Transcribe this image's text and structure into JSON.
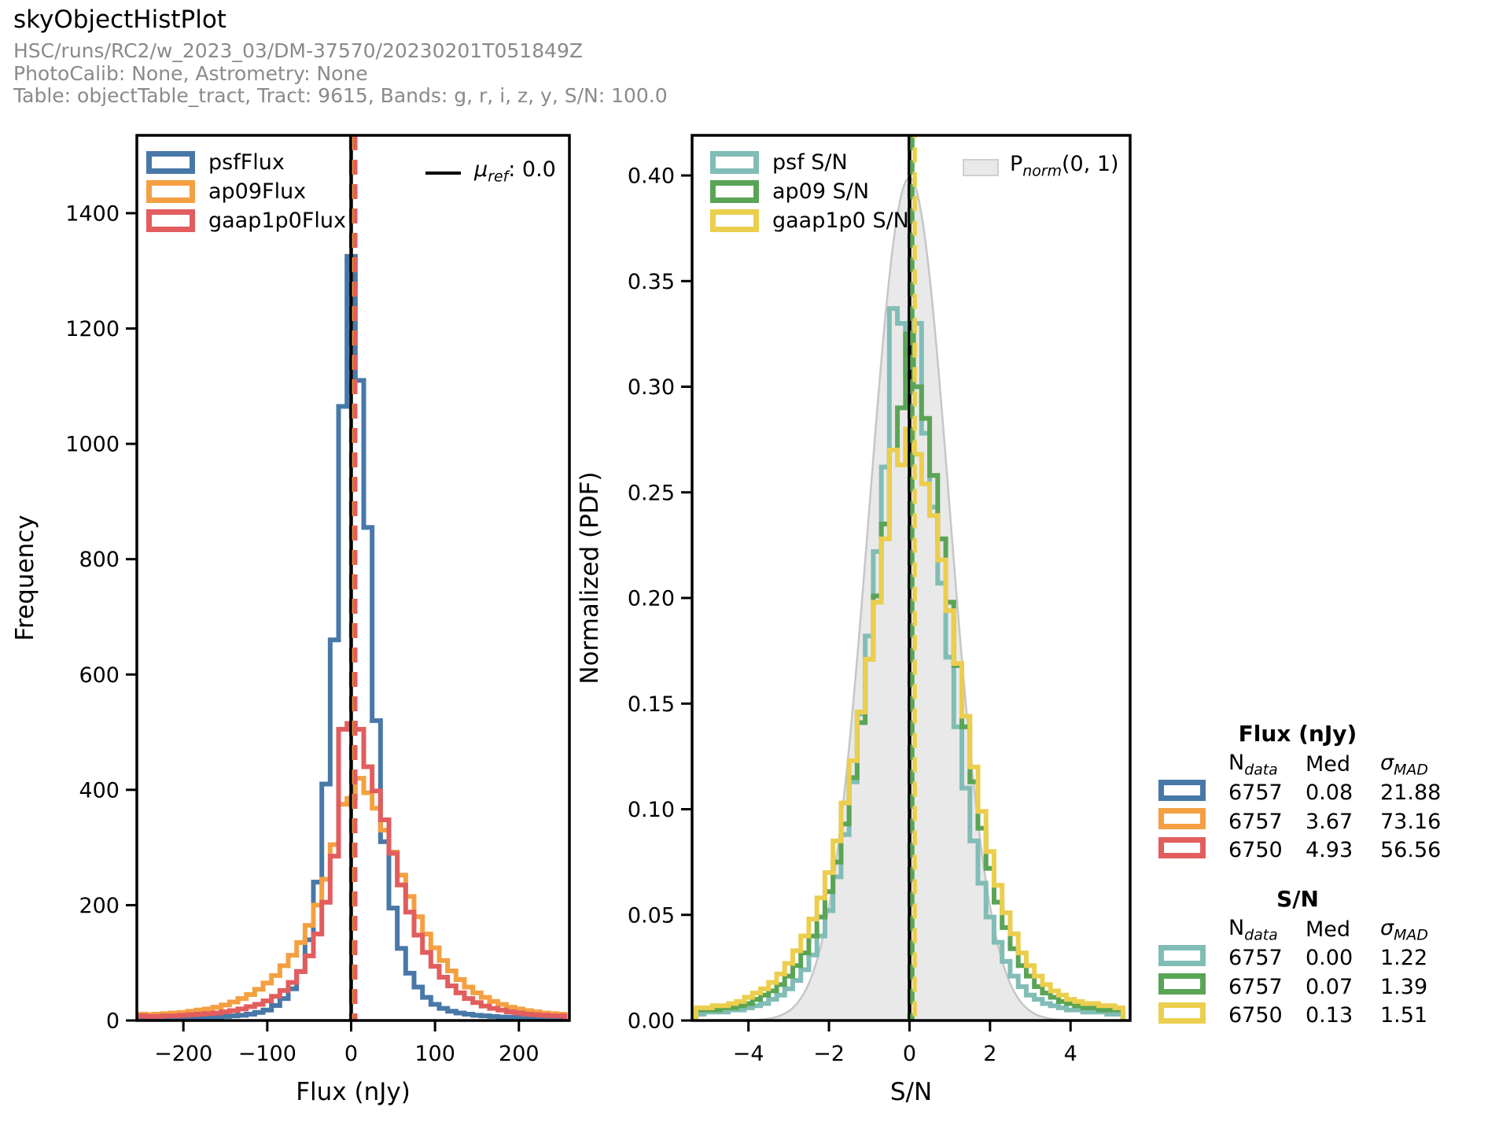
{
  "header": {
    "title": "skyObjectHistPlot",
    "run": "HSC/runs/RC2/w_2023_03/DM-37570/20230201T051849Z",
    "calib": "PhotoCalib: None, Astrometry: None",
    "table_info": "Table: objectTable_tract, Tract: 9615, Bands: g, r, i, z, y, S/N: 100.0"
  },
  "colors": {
    "subtitle_gray": "#8a8a8a",
    "axis_black": "#000000",
    "normal_fill": "#e9e9e9",
    "normal_edge": "#c6c6c6"
  },
  "chart_data": [
    {
      "type": "bar",
      "subtype": "step-histogram",
      "name": "flux-histogram",
      "title": "",
      "xlabel": "Flux (nJy)",
      "ylabel": "Frequency",
      "xlim": [
        -255.5,
        260.2
      ],
      "ylim": [
        0,
        1535
      ],
      "grid": false,
      "legend_position": "upper left",
      "xticks": [
        -200,
        -100,
        0,
        100,
        200
      ],
      "xtick_labels": [
        "−200",
        "−100",
        "0",
        "100",
        "200"
      ],
      "yticks": [
        0,
        200,
        400,
        600,
        800,
        1000,
        1200,
        1400
      ],
      "ytick_labels": [
        "0",
        "200",
        "400",
        "600",
        "800",
        "1000",
        "1200",
        "1400"
      ],
      "bin_width": 10,
      "bin_centers_start": -250,
      "ref_line": {
        "x": 0.0,
        "symbol": "μ",
        "sub": "ref",
        "text": ": 0.0",
        "color": "#000000"
      },
      "series": [
        {
          "name": "psfFlux",
          "color": "#4878a8",
          "n_data": 6757,
          "median": 0.08,
          "sigma_mad": 21.88,
          "values": [
            3,
            3,
            3,
            4,
            4,
            4,
            5,
            5,
            6,
            6,
            7,
            8,
            9,
            11,
            14,
            18,
            26,
            38,
            55,
            85,
            140,
            240,
            410,
            660,
            1065,
            1325,
            1110,
            855,
            520,
            310,
            195,
            125,
            82,
            58,
            40,
            28,
            21,
            16,
            13,
            11,
            9,
            8,
            7,
            6,
            6,
            5,
            5,
            4,
            4,
            4,
            3
          ]
        },
        {
          "name": "ap09Flux",
          "color": "#f4a042",
          "n_data": 6757,
          "median": 3.67,
          "sigma_mad": 73.16,
          "values": [
            11,
            10,
            11,
            12,
            13,
            14,
            16,
            18,
            20,
            23,
            27,
            32,
            38,
            45,
            54,
            65,
            78,
            95,
            113,
            135,
            165,
            200,
            245,
            305,
            375,
            385,
            420,
            395,
            368,
            330,
            292,
            252,
            215,
            180,
            150,
            126,
            104,
            86,
            71,
            58,
            48,
            40,
            33,
            28,
            23,
            20,
            17,
            15,
            13,
            12,
            11
          ]
        },
        {
          "name": "gaap1p0Flux",
          "color": "#e25d5e",
          "n_data": 6750,
          "median": 4.93,
          "sigma_mad": 56.56,
          "values": [
            8,
            7,
            7,
            8,
            8,
            9,
            10,
            11,
            12,
            13,
            15,
            17,
            20,
            24,
            28,
            34,
            42,
            52,
            66,
            85,
            112,
            150,
            205,
            285,
            505,
            515,
            505,
            440,
            398,
            348,
            290,
            235,
            188,
            148,
            118,
            94,
            75,
            60,
            48,
            38,
            31,
            25,
            21,
            18,
            15,
            13,
            11,
            10,
            9,
            8,
            8
          ]
        }
      ]
    },
    {
      "type": "bar",
      "subtype": "step-histogram",
      "name": "sn-histogram",
      "title": "",
      "xlabel": "S/N",
      "ylabel": "Normalized (PDF)",
      "xlim": [
        -5.4,
        5.48
      ],
      "ylim": [
        0,
        0.419
      ],
      "grid": false,
      "legend_position": "upper left",
      "xticks": [
        -4,
        -2,
        0,
        2,
        4
      ],
      "xtick_labels": [
        "−4",
        "−2",
        "0",
        "2",
        "4"
      ],
      "yticks": [
        0.0,
        0.05,
        0.1,
        0.15,
        0.2,
        0.25,
        0.3,
        0.35,
        0.4
      ],
      "ytick_labels": [
        "0.00",
        "0.05",
        "0.10",
        "0.15",
        "0.20",
        "0.25",
        "0.30",
        "0.35",
        "0.40"
      ],
      "bin_width": 0.2,
      "bin_centers_start": -5.2,
      "ref_line": {
        "x": 0.0,
        "color": "#000000"
      },
      "normal_overlay": {
        "mean": 0,
        "sigma": 1,
        "amplitude": 0.39894,
        "fill": "#e9e9e9",
        "edge": "#c6c6c6",
        "legend_symbol": "P",
        "legend_sub": "norm",
        "legend_text": "(0, 1)"
      },
      "series": [
        {
          "name": "psf S/N",
          "color": "#81bdb6",
          "n_data": 6757,
          "median": 0.0,
          "sigma_mad": 1.22,
          "values": [
            0.003,
            0.004,
            0.004,
            0.004,
            0.005,
            0.005,
            0.006,
            0.007,
            0.008,
            0.01,
            0.012,
            0.015,
            0.019,
            0.024,
            0.031,
            0.04,
            0.052,
            0.068,
            0.088,
            0.113,
            0.145,
            0.182,
            0.222,
            0.262,
            0.337,
            0.33,
            0.305,
            0.33,
            0.278,
            0.243,
            0.207,
            0.172,
            0.139,
            0.11,
            0.085,
            0.065,
            0.049,
            0.037,
            0.028,
            0.021,
            0.016,
            0.012,
            0.01,
            0.008,
            0.007,
            0.006,
            0.005,
            0.005,
            0.004,
            0.004,
            0.004,
            0.003,
            0.003
          ]
        },
        {
          "name": "ap09 S/N",
          "color": "#5aa456",
          "n_data": 6757,
          "median": 0.07,
          "sigma_mad": 1.39,
          "values": [
            0.005,
            0.005,
            0.005,
            0.006,
            0.006,
            0.007,
            0.008,
            0.01,
            0.012,
            0.014,
            0.017,
            0.021,
            0.026,
            0.032,
            0.04,
            0.049,
            0.061,
            0.075,
            0.093,
            0.115,
            0.141,
            0.171,
            0.201,
            0.235,
            0.27,
            0.29,
            0.325,
            0.3,
            0.285,
            0.258,
            0.228,
            0.198,
            0.168,
            0.139,
            0.113,
            0.091,
            0.072,
            0.056,
            0.044,
            0.034,
            0.026,
            0.021,
            0.016,
            0.013,
            0.011,
            0.009,
            0.008,
            0.007,
            0.006,
            0.006,
            0.005,
            0.005,
            0.005
          ]
        },
        {
          "name": "gaap1p0 S/N",
          "color": "#ecce4e",
          "n_data": 6750,
          "median": 0.13,
          "sigma_mad": 1.51,
          "values": [
            0.006,
            0.006,
            0.007,
            0.007,
            0.008,
            0.009,
            0.011,
            0.013,
            0.015,
            0.018,
            0.022,
            0.027,
            0.033,
            0.04,
            0.048,
            0.058,
            0.07,
            0.085,
            0.103,
            0.123,
            0.146,
            0.171,
            0.198,
            0.228,
            0.27,
            0.263,
            0.28,
            0.268,
            0.254,
            0.239,
            0.218,
            0.194,
            0.169,
            0.144,
            0.12,
            0.099,
            0.08,
            0.064,
            0.051,
            0.041,
            0.032,
            0.026,
            0.021,
            0.017,
            0.014,
            0.012,
            0.01,
            0.009,
            0.008,
            0.008,
            0.007,
            0.007,
            0.006
          ]
        }
      ]
    }
  ],
  "stats_panel": {
    "headers": {
      "n": "N",
      "n_sub": "data",
      "med": "Med",
      "sigma": "σ",
      "sigma_sub": "MAD"
    },
    "flux": {
      "title": "Flux (nJy)",
      "rows": [
        {
          "n": "6757",
          "med": "0.08",
          "sigma": "21.88"
        },
        {
          "n": "6757",
          "med": "3.67",
          "sigma": "73.16"
        },
        {
          "n": "6750",
          "med": "4.93",
          "sigma": "56.56"
        }
      ]
    },
    "sn": {
      "title": "S/N",
      "rows": [
        {
          "n": "6757",
          "med": "0.00",
          "sigma": "1.22"
        },
        {
          "n": "6757",
          "med": "0.07",
          "sigma": "1.39"
        },
        {
          "n": "6750",
          "med": "0.13",
          "sigma": "1.51"
        }
      ]
    }
  }
}
